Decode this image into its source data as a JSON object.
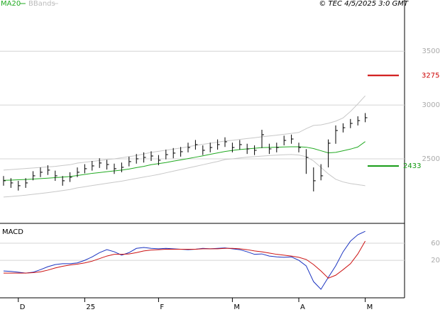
{
  "header": {
    "legend_ma": "MA20",
    "legend_bb": "BBands",
    "copyright": "© TEC 4/5/2025 3:0 GMT"
  },
  "chart_data": [
    {
      "type": "ohlc",
      "high": [
        2340,
        2320,
        2295,
        2320,
        2385,
        2420,
        2440,
        2390,
        2340,
        2375,
        2420,
        2450,
        2480,
        2505,
        2490,
        2455,
        2465,
        2520,
        2545,
        2560,
        2570,
        2535,
        2585,
        2600,
        2610,
        2650,
        2675,
        2625,
        2650,
        2680,
        2700,
        2650,
        2675,
        2640,
        2625,
        2770,
        2640,
        2650,
        2715,
        2725,
        2650,
        2590,
        2420,
        2450,
        2680,
        2810,
        2830,
        2870,
        2895,
        2925
      ],
      "low": [
        2250,
        2230,
        2205,
        2230,
        2300,
        2330,
        2350,
        2295,
        2250,
        2285,
        2330,
        2365,
        2390,
        2415,
        2400,
        2360,
        2375,
        2430,
        2455,
        2465,
        2480,
        2440,
        2495,
        2505,
        2520,
        2560,
        2585,
        2535,
        2560,
        2585,
        2610,
        2560,
        2585,
        2545,
        2535,
        2600,
        2545,
        2560,
        2625,
        2640,
        2560,
        2360,
        2197,
        2300,
        2420,
        2640,
        2745,
        2785,
        2810,
        2840
      ],
      "close": [
        2296,
        2276,
        2250,
        2276,
        2342,
        2375,
        2395,
        2342,
        2296,
        2329,
        2375,
        2408,
        2434,
        2461,
        2447,
        2408,
        2421,
        2474,
        2500,
        2513,
        2526,
        2487,
        2539,
        2553,
        2566,
        2605,
        2632,
        2579,
        2605,
        2632,
        2658,
        2605,
        2632,
        2592,
        2579,
        2724,
        2592,
        2605,
        2671,
        2684,
        2605,
        2513,
        2296,
        2342,
        2645,
        2763,
        2789,
        2829,
        2855,
        2882
      ],
      "bar_color": "#000000",
      "series": [
        {
          "name": "MA20",
          "color": "#22aa22",
          "values": [
            2300,
            2302,
            2305,
            2308,
            2312,
            2316,
            2320,
            2325,
            2330,
            2335,
            2345,
            2355,
            2365,
            2372,
            2380,
            2388,
            2395,
            2405,
            2418,
            2430,
            2445,
            2455,
            2465,
            2478,
            2490,
            2502,
            2515,
            2528,
            2542,
            2555,
            2568,
            2578,
            2586,
            2592,
            2598,
            2604,
            2606,
            2608,
            2610,
            2612,
            2612,
            2608,
            2595,
            2575,
            2555,
            2560,
            2575,
            2590,
            2610,
            2660
          ]
        },
        {
          "name": "BBands",
          "color": "#c8c8c8",
          "values": [
            2395,
            2400,
            2405,
            2410,
            2415,
            2420,
            2425,
            2430,
            2438,
            2445,
            2460,
            2468,
            2476,
            2484,
            2492,
            2500,
            2510,
            2520,
            2530,
            2545,
            2560,
            2570,
            2580,
            2590,
            2600,
            2612,
            2625,
            2635,
            2645,
            2655,
            2665,
            2672,
            2680,
            2688,
            2696,
            2705,
            2712,
            2720,
            2728,
            2736,
            2745,
            2780,
            2810,
            2815,
            2830,
            2850,
            2880,
            2940,
            3010,
            3086
          ],
          "lower": [
            2145,
            2150,
            2155,
            2162,
            2170,
            2178,
            2186,
            2195,
            2205,
            2215,
            2230,
            2240,
            2252,
            2262,
            2272,
            2282,
            2292,
            2305,
            2318,
            2330,
            2342,
            2355,
            2370,
            2385,
            2400,
            2415,
            2430,
            2445,
            2460,
            2475,
            2493,
            2500,
            2508,
            2515,
            2520,
            2525,
            2530,
            2534,
            2538,
            2540,
            2535,
            2520,
            2480,
            2420,
            2360,
            2310,
            2285,
            2270,
            2260,
            2250
          ]
        }
      ],
      "levels": [
        {
          "value": 3275,
          "color": "#cc0000"
        },
        {
          "value": 2433,
          "color": "#119911"
        }
      ],
      "ylim": [
        1900,
        3910
      ],
      "yticks": [
        2500,
        3000,
        3500
      ],
      "grid": true
    },
    {
      "type": "line",
      "title": "MACD",
      "categories": [
        null,
        null,
        "D",
        null,
        null,
        null,
        null,
        null,
        null,
        null,
        null,
        "25",
        null,
        null,
        null,
        null,
        null,
        null,
        null,
        null,
        null,
        "F",
        null,
        null,
        null,
        null,
        null,
        null,
        null,
        null,
        null,
        "M",
        null,
        null,
        null,
        null,
        null,
        null,
        null,
        null,
        "A",
        null,
        null,
        null,
        null,
        null,
        null,
        null,
        null,
        "M"
      ],
      "series": [
        {
          "color": "#1a33c0",
          "values": [
            -5,
            -6,
            -8,
            -10,
            -8,
            -2,
            5,
            10,
            12,
            12,
            14,
            20,
            28,
            38,
            45,
            40,
            32,
            38,
            48,
            50,
            48,
            47,
            48,
            47,
            46,
            45,
            46,
            48,
            47,
            48,
            49,
            47,
            45,
            40,
            34,
            35,
            30,
            28,
            27,
            28,
            20,
            7,
            -30,
            -48,
            -20,
            7,
            40,
            65,
            80,
            88
          ]
        },
        {
          "color": "#cc1111",
          "values": [
            -10,
            -10,
            -10,
            -10,
            -9,
            -7,
            -3,
            2,
            6,
            9,
            11,
            14,
            18,
            24,
            30,
            34,
            34,
            35,
            38,
            42,
            44,
            45,
            46,
            46,
            46,
            46,
            46,
            47,
            47,
            47,
            48,
            48,
            47,
            45,
            42,
            40,
            37,
            34,
            32,
            30,
            27,
            22,
            10,
            -5,
            -22,
            -15,
            -2,
            12,
            35,
            65
          ]
        }
      ],
      "ylim": [
        -68,
        105
      ],
      "yticks": [
        20,
        60
      ],
      "grid": true
    }
  ]
}
